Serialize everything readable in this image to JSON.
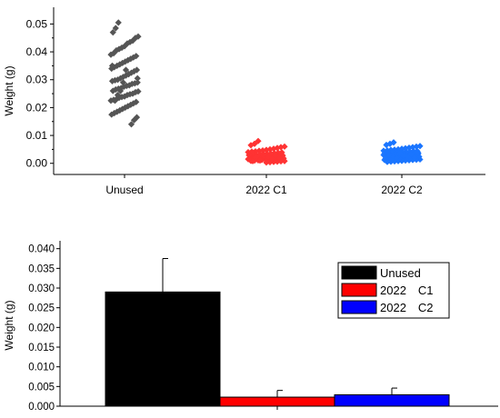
{
  "colors": {
    "unused": "#555555",
    "c1": "#ff3333",
    "c2": "#1a75ff",
    "bar_unused": "#000000",
    "bar_c1": "#ff0000",
    "bar_c2": "#0000ff"
  },
  "chart_data": [
    {
      "type": "scatter",
      "ylabel": "Weight (g)",
      "xlabel": "",
      "categories": [
        "Unused",
        "2022 C1",
        "2022 C2"
      ],
      "ylim": [
        -0.004,
        0.056
      ],
      "yticks": [
        "0.00",
        "0.01",
        "0.02",
        "0.03",
        "0.04",
        "0.05"
      ],
      "marker": "diamond",
      "series": [
        {
          "category": "Unused",
          "color": "#555555",
          "values": [
            0.0505,
            0.0485,
            0.047,
            0.0455,
            0.045,
            0.044,
            0.0435,
            0.043,
            0.042,
            0.0415,
            0.041,
            0.0405,
            0.0395,
            0.039,
            0.0385,
            0.038,
            0.0375,
            0.037,
            0.0365,
            0.036,
            0.0355,
            0.035,
            0.0345,
            0.034,
            0.0335,
            0.033,
            0.0325,
            0.032,
            0.0315,
            0.031,
            0.0305,
            0.03,
            0.0298,
            0.0295,
            0.029,
            0.0287,
            0.0285,
            0.028,
            0.0278,
            0.0275,
            0.027,
            0.0268,
            0.0265,
            0.026,
            0.0258,
            0.0255,
            0.025,
            0.0248,
            0.0245,
            0.024,
            0.0238,
            0.0235,
            0.023,
            0.0228,
            0.0225,
            0.022,
            0.0215,
            0.021,
            0.0205,
            0.02,
            0.0195,
            0.019,
            0.0185,
            0.018,
            0.0175,
            0.0165,
            0.0155,
            0.014,
            0.032,
            0.0335,
            0.029,
            0.026,
            0.0245,
            0.0225,
            0.035,
            0.0305
          ]
        },
        {
          "category": "2022 C1",
          "color": "#ff3333",
          "values": [
            0.008,
            0.007,
            0.0065,
            0.006,
            0.0058,
            0.0055,
            0.0052,
            0.005,
            0.0048,
            0.0046,
            0.0045,
            0.0043,
            0.0042,
            0.004,
            0.0039,
            0.0038,
            0.0036,
            0.0035,
            0.0034,
            0.0033,
            0.0032,
            0.0031,
            0.003,
            0.0029,
            0.0028,
            0.0027,
            0.0026,
            0.0025,
            0.0024,
            0.0023,
            0.0022,
            0.0021,
            0.002,
            0.0019,
            0.0018,
            0.0017,
            0.0016,
            0.0015,
            0.0014,
            0.0013,
            0.0012,
            0.0011,
            0.001,
            0.0009,
            0.0008,
            0.0007,
            0.0006,
            0.0005,
            0.0004,
            0.0003,
            0.003,
            0.0025,
            0.002,
            0.0035,
            0.0015,
            0.0028,
            0.0022,
            0.0018,
            0.0032,
            0.0012,
            0.0026,
            0.001,
            0.0024,
            0.0008,
            0.003,
            0.0019,
            0.0021,
            0.0027,
            0.0016,
            0.0023
          ]
        },
        {
          "category": "2022 C2",
          "color": "#1a75ff",
          "values": [
            0.0075,
            0.007,
            0.0066,
            0.0062,
            0.006,
            0.0058,
            0.0056,
            0.0054,
            0.0052,
            0.005,
            0.0049,
            0.0048,
            0.0046,
            0.0045,
            0.0044,
            0.0043,
            0.0042,
            0.0041,
            0.004,
            0.0039,
            0.0038,
            0.0037,
            0.0036,
            0.0035,
            0.0034,
            0.0033,
            0.0032,
            0.0031,
            0.003,
            0.0029,
            0.0028,
            0.0027,
            0.0026,
            0.0025,
            0.0024,
            0.0023,
            0.0022,
            0.0021,
            0.002,
            0.0019,
            0.0018,
            0.0017,
            0.0016,
            0.0015,
            0.0014,
            0.0013,
            0.0012,
            0.0011,
            0.001,
            0.0009,
            0.0008,
            0.0007,
            0.0006,
            0.0005,
            0.003,
            0.0028,
            0.0025,
            0.0022,
            0.0035,
            0.004,
            0.0018,
            0.0032,
            0.0015,
            0.0027,
            0.0012,
            0.0038,
            0.002,
            0.0033,
            0.0024,
            0.0029,
            0.0036,
            0.0021,
            0.0026,
            0.0031,
            0.0017
          ]
        }
      ]
    },
    {
      "type": "bar",
      "ylabel": "Weight (g)",
      "xlabel": "",
      "categories": [
        "Unused",
        "2022 C1",
        "2022 C2"
      ],
      "values": [
        0.029,
        0.0023,
        0.0029
      ],
      "errors": [
        0.0085,
        0.0017,
        0.0017
      ],
      "ylim": [
        0.0,
        0.042
      ],
      "yticks": [
        "0.000",
        "0.005",
        "0.010",
        "0.015",
        "0.020",
        "0.025",
        "0.030",
        "0.035",
        "0.040"
      ],
      "legend": {
        "placement": "top-right",
        "entries": [
          {
            "label": "Unused",
            "color": "#000000"
          },
          {
            "label": "2022　C1",
            "color": "#ff0000"
          },
          {
            "label": "2022　C2",
            "color": "#0000ff"
          }
        ]
      }
    }
  ]
}
